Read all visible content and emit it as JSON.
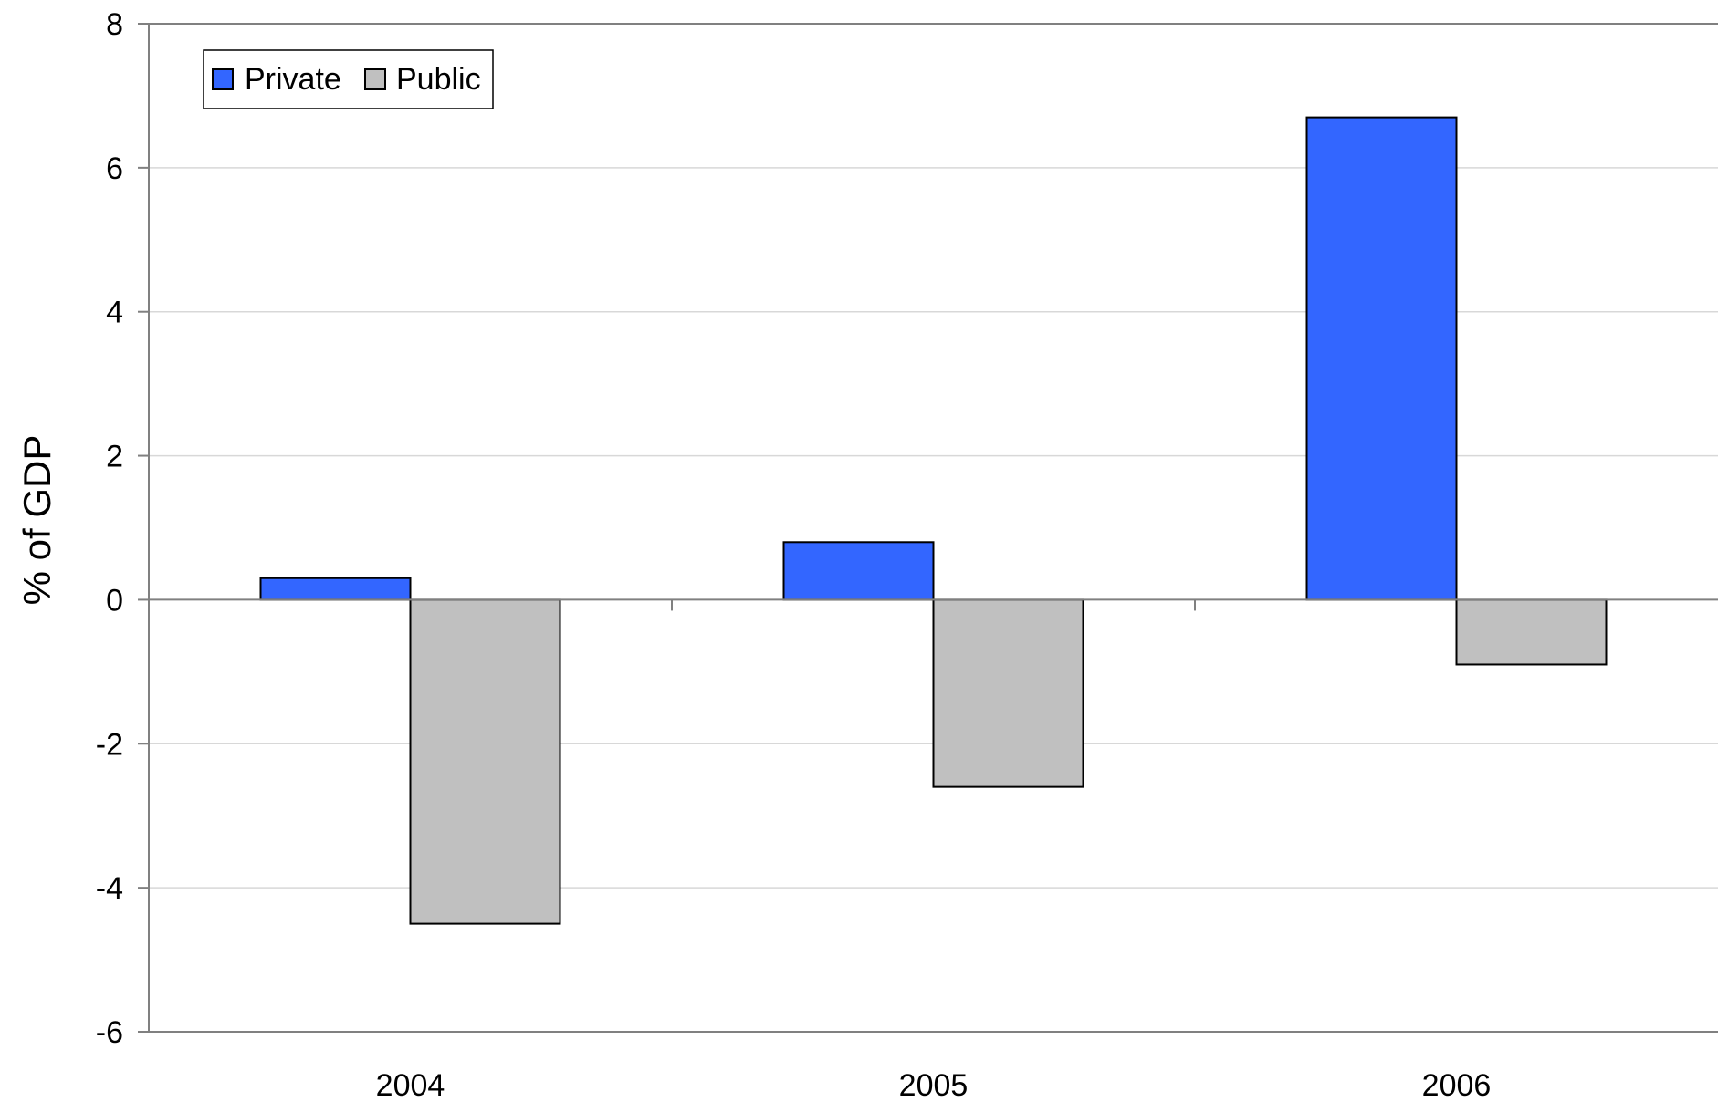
{
  "chart_data": {
    "type": "bar",
    "categories": [
      "2004",
      "2005",
      "2006"
    ],
    "series": [
      {
        "name": "Private",
        "values": [
          0.3,
          0.8,
          6.7
        ],
        "color": "#3366FF"
      },
      {
        "name": "Public",
        "values": [
          -4.5,
          -2.6,
          -0.9
        ],
        "color": "#C0C0C0"
      }
    ],
    "title": "",
    "xlabel": "",
    "ylabel": "% of GDP",
    "ylim": [
      -6,
      8
    ],
    "yticks": [
      "8",
      "6",
      "4",
      "2",
      "0",
      "-2",
      "-4",
      "-6"
    ],
    "grid": true,
    "legend_position": "top-left"
  }
}
